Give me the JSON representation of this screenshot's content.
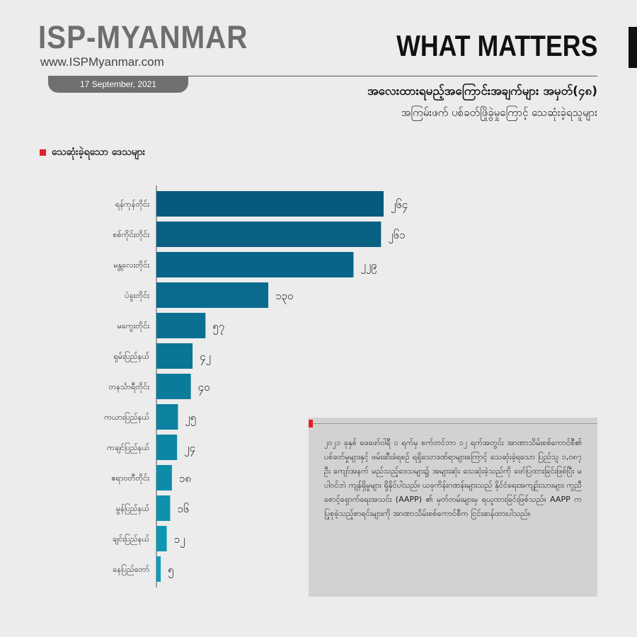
{
  "header": {
    "logo": "ISP-MYANMAR",
    "website": "www.ISPMyanmar.com",
    "date": "17 September, 2021",
    "brand": "WHAT MATTERS",
    "title": "အလေးထားရမည့်အကြောင်းအချက်များ အမှတ်(၄၈)",
    "subtitle": "အကြမ်းဖက် ပစ်ခတ်ဖြိုခွဲမှုကြောင့် သေဆုံးခဲ့ရသူများ"
  },
  "section": {
    "label": "သေဆုံးခဲ့ရသော ဒေသများ"
  },
  "colors": {
    "accent": "#e0202a",
    "bar_dark": "#075a7e",
    "bar_light": "#0f9cb8"
  },
  "chart_data": {
    "type": "bar",
    "orientation": "horizontal",
    "categories": [
      "ရန်ကုန်တိုင်း",
      "စစ်ကိုင်းတိုင်း",
      "မန္တလေးတိုင်း",
      "ပဲခူးတိုင်း",
      "မကွေးတိုင်း",
      "ရှမ်းပြည်နယ်",
      "တနင်္သာရီတိုင်း",
      "ကယားပြည်နယ်",
      "ကချင်ပြည်နယ်",
      "ဧရာဝတီတိုင်း",
      "မွန်ပြည်နယ်",
      "ချင်းပြည်နယ်",
      "နေပြည်တော်"
    ],
    "values": [
      264,
      261,
      229,
      130,
      57,
      42,
      40,
      25,
      24,
      18,
      16,
      12,
      5
    ],
    "value_labels": [
      "၂၆၄",
      "၂၆၁",
      "၂၂၉",
      "၁၃၀",
      "၅၇",
      "၄၂",
      "၄၀",
      "၂၅",
      "၂၄",
      "၁၈",
      "၁၆",
      "၁၂",
      "၅"
    ],
    "xlim": [
      0,
      264
    ],
    "grid": false,
    "legend": "none"
  },
  "note": {
    "text": "၂၀၂၁ ခုနှစ် ဖေဖော်ဝါရီ ၁ ရက်မှ စက်တင်ဘာ ၁၂ ရက်အတွင်း အာဏာသိမ်းစစ်ကောင်စီ၏ ပစ်ခတ်မှုများနှင့် ဖမ်းဆီးခံရစဉ် ရရှိသောဒဏ်ရာများကြောင့် သေဆုံးခဲ့ရသော ပြည်သူ ၁,၀၈၇ ဦး ကျော်အနက် မည်သည့်ဒေသများ၌ အများဆုံး သေဆုံးခဲ့သည်ကို ဖော်ပြထားခြင်းဖြစ်ပြီး မပါဝင်ဘဲ ကျန်ရှိမှုများ ရှိနိုင်ပါသည်။ ယခုကိန်းဂဏန်းများသည် နိုင်ငံရေးအကျဉ်းသားများ ကူညီစောင့်ရှောက်ရေးအသင်း (AAPP) ၏ မှတ်တမ်းများမှ ရယူထားခြင်းဖြစ်သည်။ AAPP က ပြုစုခဲ့သည့်စာရင်းများကို အာဏာသိမ်းစစ်ကောင်စီက ငြင်းဆန်ထားပါသည်။"
  }
}
